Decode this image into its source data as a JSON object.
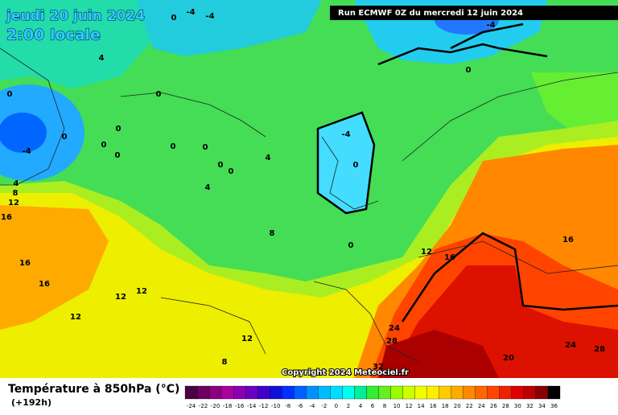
{
  "header": {
    "date": "jeudi 20 juin 2024",
    "time": "2:00 locale",
    "run": "Run ECMWF 0Z du mercredi 12 juin 2024"
  },
  "map": {
    "contour_labels": [
      -4,
      -4,
      0,
      4,
      0,
      0,
      0,
      0,
      0,
      0,
      -4,
      -4,
      0,
      0,
      0,
      0,
      0,
      4,
      4,
      0,
      8,
      4,
      8,
      12,
      16,
      16,
      16,
      12,
      12,
      12,
      12,
      8,
      12,
      16,
      16,
      24,
      28,
      32,
      20,
      24,
      28,
      -4,
      0
    ],
    "copyright": "Copyright 2024 Meteociel.fr"
  },
  "legend": {
    "title": "Température à 850hPa (°C)",
    "subtitle": "(+192h)",
    "labels": [
      -24,
      -22,
      -20,
      -18,
      -16,
      -14,
      -12,
      -10,
      -8,
      -6,
      -4,
      -2,
      0,
      2,
      4,
      6,
      8,
      10,
      12,
      14,
      16,
      18,
      20,
      22,
      24,
      26,
      28,
      30,
      32,
      34,
      36
    ],
    "colors": [
      "#4b0040",
      "#6a005f",
      "#8a007f",
      "#aa009f",
      "#8a00b0",
      "#6a00c0",
      "#4000c8",
      "#1010d8",
      "#0030ff",
      "#0060ff",
      "#0090ff",
      "#00bbff",
      "#00ddff",
      "#00ffee",
      "#00ee99",
      "#33ee33",
      "#66ee22",
      "#99ff00",
      "#ccff00",
      "#eeff00",
      "#ffee00",
      "#ffcc00",
      "#ffaa00",
      "#ff8800",
      "#ff6600",
      "#ff4400",
      "#ee2200",
      "#dd0000",
      "#bb0000",
      "#880000",
      "#000000"
    ]
  }
}
